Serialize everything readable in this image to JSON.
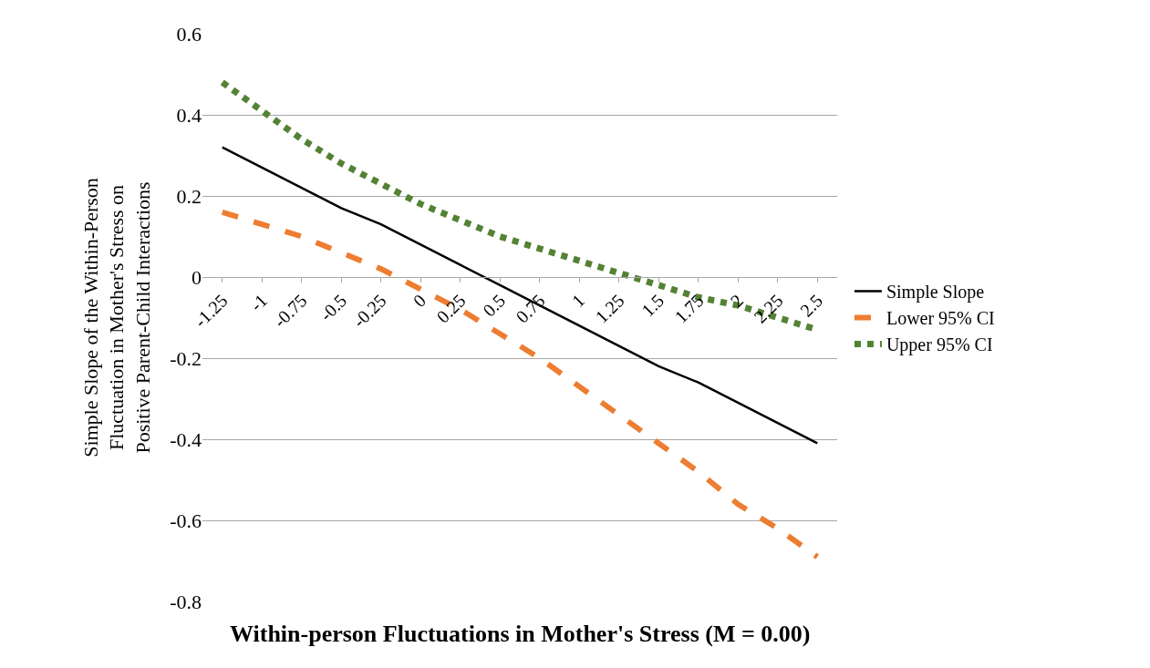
{
  "chart_data": {
    "type": "line",
    "xlabel": "Within-person Fluctuations in Mother's Stress (M = 0.00)",
    "ylabel": "Simple Slope of the Within-Person Fluctuation in Mother's Stress on Positive Parent-Child Interactions",
    "categories": [
      "-1.25",
      "-1",
      "-0.75",
      "-0.5",
      "-0.25",
      "0",
      "0.25",
      "0.5",
      "0.75",
      "1",
      "1.25",
      "1.5",
      "1.75",
      "2",
      "2.25",
      "2.5"
    ],
    "series": [
      {
        "name": "Simple Slope",
        "color": "#000000",
        "line_style": "solid",
        "values": [
          0.32,
          0.27,
          0.22,
          0.17,
          0.13,
          0.08,
          0.03,
          -0.02,
          -0.07,
          -0.12,
          -0.17,
          -0.22,
          -0.26,
          -0.31,
          -0.36,
          -0.41
        ]
      },
      {
        "name": "Lower 95% CI",
        "color": "#ed7d31",
        "line_style": "dashed",
        "values": [
          0.16,
          0.13,
          0.1,
          0.06,
          0.02,
          -0.03,
          -0.08,
          -0.14,
          -0.2,
          -0.27,
          -0.34,
          -0.41,
          -0.48,
          -0.56,
          -0.62,
          -0.69
        ]
      },
      {
        "name": "Upper 95% CI",
        "color": "#548235",
        "line_style": "dotted",
        "values": [
          0.48,
          0.41,
          0.34,
          0.28,
          0.23,
          0.18,
          0.14,
          0.1,
          0.07,
          0.04,
          0.01,
          -0.02,
          -0.05,
          -0.07,
          -0.1,
          -0.13
        ]
      }
    ],
    "ylim": [
      -0.8,
      0.6
    ],
    "yticks": [
      -0.8,
      -0.6,
      -0.4,
      -0.2,
      0,
      0.2,
      0.4,
      0.6
    ],
    "grid": "y",
    "legend": "right",
    "marker": "none"
  }
}
